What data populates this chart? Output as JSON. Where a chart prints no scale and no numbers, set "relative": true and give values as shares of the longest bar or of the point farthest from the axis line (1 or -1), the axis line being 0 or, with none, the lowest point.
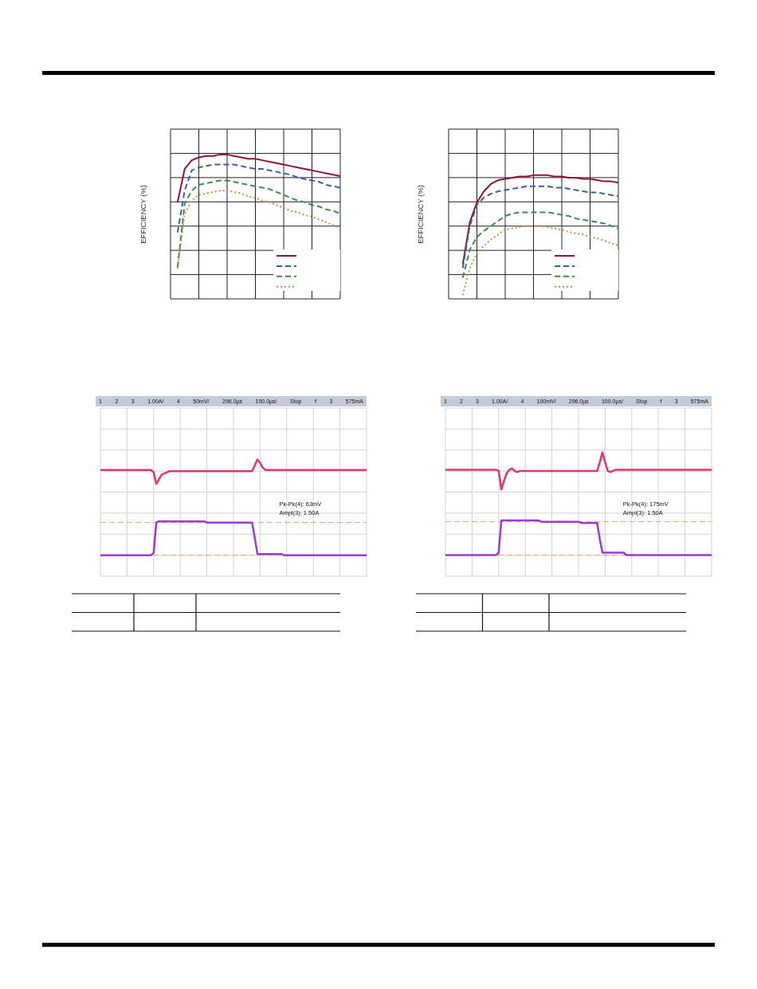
{
  "chart_data": [
    {
      "type": "line",
      "ylabel": "EFFICIENCY (%)",
      "relative": true,
      "tick_labels": false,
      "grid": true,
      "categories": [
        null,
        null,
        null,
        null,
        null,
        null,
        null,
        null,
        null,
        null,
        null,
        null,
        null,
        null,
        null,
        null,
        null,
        null,
        null,
        null,
        null,
        null,
        null,
        null,
        null
      ],
      "series": [
        {
          "color": "#8e1538",
          "line_style": "solid",
          "values": [
            null,
            0.67,
            0.9,
            0.96,
            0.98,
            0.99,
            0.99,
            1,
            1,
            0.99,
            0.98,
            0.97,
            0.97,
            0.96,
            0.95,
            0.94,
            0.93,
            0.92,
            0.91,
            0.9,
            0.89,
            0.88,
            0.87,
            0.86,
            0.85
          ]
        },
        {
          "color": "#3c5ea6",
          "line_style": "dashed",
          "values": [
            null,
            0.46,
            0.75,
            0.89,
            0.91,
            0.92,
            0.93,
            0.93,
            0.93,
            0.93,
            0.92,
            0.91,
            0.9,
            0.9,
            0.89,
            0.88,
            0.87,
            0.86,
            0.84,
            0.83,
            0.82,
            0.81,
            0.79,
            0.78,
            0.77
          ]
        },
        {
          "color": "#3d8b52",
          "line_style": "dashed",
          "values": [
            null,
            0.22,
            0.66,
            0.75,
            0.79,
            0.8,
            0.81,
            0.82,
            0.82,
            0.81,
            0.8,
            0.79,
            0.78,
            0.77,
            0.76,
            0.74,
            0.72,
            0.7,
            0.68,
            0.67,
            0.65,
            0.64,
            0.62,
            0.61,
            0.59
          ]
        },
        {
          "color": "#d4884c",
          "line_style": "dotted",
          "values": [
            null,
            0.21,
            0.59,
            0.68,
            0.72,
            0.73,
            0.74,
            0.75,
            0.75,
            0.74,
            0.73,
            0.71,
            0.7,
            0.68,
            0.67,
            0.65,
            0.63,
            0.61,
            0.6,
            0.58,
            0.57,
            0.55,
            0.53,
            0.51,
            0.49
          ]
        }
      ]
    },
    {
      "type": "line",
      "ylabel": "EFFICIENCY (%)",
      "relative": true,
      "tick_labels": false,
      "grid": true,
      "categories": [
        null,
        null,
        null,
        null,
        null,
        null,
        null,
        null,
        null,
        null,
        null,
        null,
        null,
        null,
        null,
        null,
        null,
        null,
        null,
        null,
        null,
        null,
        null,
        null,
        null
      ],
      "series": [
        {
          "color": "#8e1538",
          "line_style": "solid",
          "values": [
            null,
            null,
            0.28,
            0.62,
            0.78,
            0.87,
            0.93,
            0.96,
            0.97,
            0.98,
            0.99,
            0.99,
            1,
            1,
            1,
            0.99,
            0.99,
            0.98,
            0.98,
            0.97,
            0.97,
            0.96,
            0.95,
            0.95,
            0.94
          ]
        },
        {
          "color": "#3c5ea6",
          "line_style": "dashed",
          "values": [
            null,
            null,
            0.25,
            0.59,
            0.76,
            0.82,
            0.85,
            0.87,
            0.88,
            0.89,
            0.9,
            0.91,
            0.91,
            0.91,
            0.91,
            0.9,
            0.9,
            0.89,
            0.88,
            0.87,
            0.86,
            0.86,
            0.85,
            0.84,
            0.83
          ]
        },
        {
          "color": "#3d8b52",
          "line_style": "dashed",
          "values": [
            null,
            null,
            0.17,
            0.4,
            0.5,
            0.55,
            0.59,
            0.63,
            0.67,
            0.69,
            0.7,
            0.7,
            0.7,
            0.7,
            0.7,
            0.69,
            0.68,
            0.67,
            0.65,
            0.64,
            0.63,
            0.62,
            0.61,
            0.59,
            0.57
          ]
        },
        {
          "color": "#d4884c",
          "line_style": "dotted",
          "values": [
            null,
            null,
            0.03,
            0.25,
            0.37,
            0.43,
            0.48,
            0.52,
            0.56,
            0.57,
            0.58,
            0.59,
            0.59,
            0.59,
            0.58,
            0.57,
            0.56,
            0.54,
            0.53,
            0.52,
            0.5,
            0.49,
            0.47,
            0.45,
            0.43
          ]
        }
      ]
    },
    {
      "type": "line",
      "relative": true,
      "tick_labels": false,
      "grid": true,
      "categories": [
        null,
        null,
        null,
        null,
        null,
        null,
        null,
        null,
        null,
        null,
        null,
        null,
        null,
        null,
        null,
        null,
        null,
        null,
        null,
        null,
        null,
        null,
        null,
        null,
        null,
        null,
        null,
        null,
        null,
        null,
        null,
        null,
        null,
        null,
        null,
        null,
        null,
        null,
        null,
        null,
        null,
        null,
        null,
        null,
        null,
        null,
        null,
        null,
        null,
        null,
        null,
        null,
        null,
        null,
        null,
        null,
        null,
        null,
        null,
        null,
        null,
        null,
        null,
        null,
        null,
        null,
        null,
        null,
        null,
        null,
        null,
        null,
        null,
        null,
        null,
        null,
        null,
        null,
        null,
        null,
        null,
        null,
        null,
        null,
        null,
        null,
        null,
        null,
        null,
        null,
        null,
        null,
        null,
        null,
        null,
        null,
        null,
        null,
        null,
        null,
        null
      ],
      "series": [
        {
          "color": "#e8336e",
          "values": [
            0.91,
            0.91,
            0.91,
            0.91,
            0.91,
            0.91,
            0.91,
            0.91,
            0.91,
            0.91,
            0.91,
            0.91,
            0.91,
            0.91,
            0.91,
            0.91,
            0.91,
            0.91,
            0.91,
            0.91,
            0.89,
            0.79,
            0.83,
            0.87,
            0.88,
            0.89,
            0.9,
            0.9,
            0.9,
            0.9,
            0.9,
            0.9,
            0.9,
            0.9,
            0.9,
            0.9,
            0.9,
            0.9,
            0.9,
            0.9,
            0.9,
            0.9,
            0.9,
            0.9,
            0.9,
            0.9,
            0.9,
            0.9,
            0.9,
            0.9,
            0.9,
            0.9,
            0.9,
            0.9,
            0.9,
            0.9,
            0.9,
            0.9,
            0.95,
            1,
            0.97,
            0.93,
            0.91,
            0.91,
            0.91,
            0.91,
            0.91,
            0.91,
            0.91,
            0.91,
            0.91,
            0.91,
            0.91,
            0.91,
            0.91,
            0.91,
            0.91,
            0.91,
            0.91,
            0.91,
            0.91,
            0.91,
            0.91,
            0.91,
            0.91,
            0.91,
            0.91,
            0.91,
            0.91,
            0.91,
            0.91,
            0.91,
            0.91,
            0.91,
            0.91,
            0.91,
            0.91,
            0.91,
            0.91,
            0.91,
            0.91
          ]
        },
        {
          "color": "#9b3ad8",
          "values": [
            0.18,
            0.18,
            0.18,
            0.18,
            0.18,
            0.18,
            0.18,
            0.18,
            0.18,
            0.18,
            0.18,
            0.18,
            0.18,
            0.18,
            0.18,
            0.18,
            0.18,
            0.18,
            0.18,
            0.18,
            0.2,
            0.46,
            0.47,
            0.47,
            0.47,
            0.47,
            0.47,
            0.47,
            0.47,
            0.47,
            0.47,
            0.47,
            0.47,
            0.47,
            0.47,
            0.47,
            0.47,
            0.47,
            0.47,
            0.47,
            0.46,
            0.46,
            0.46,
            0.46,
            0.46,
            0.46,
            0.46,
            0.46,
            0.46,
            0.46,
            0.46,
            0.46,
            0.46,
            0.46,
            0.46,
            0.46,
            0.46,
            0.46,
            0.33,
            0.19,
            0.19,
            0.19,
            0.19,
            0.19,
            0.19,
            0.19,
            0.19,
            0.19,
            0.19,
            0.18,
            0.18,
            0.18,
            0.18,
            0.18,
            0.18,
            0.18,
            0.18,
            0.18,
            0.18,
            0.18,
            0.18,
            0.18,
            0.18,
            0.18,
            0.18,
            0.18,
            0.18,
            0.18,
            0.18,
            0.18,
            0.18,
            0.18,
            0.18,
            0.18,
            0.18,
            0.18,
            0.18,
            0.18,
            0.18,
            0.18,
            0.18
          ]
        }
      ],
      "ref_lines": [
        {
          "axis": "y",
          "value": 0.46,
          "color": "#e6a46a",
          "line_style": "dashed"
        },
        {
          "axis": "y",
          "value": 0.18,
          "color": "#e6a46a",
          "line_style": "dashed"
        }
      ],
      "annotations": [
        "1",
        "2",
        "3",
        "1.00A/",
        "4",
        "50mV/",
        "296.0µs",
        "100.0µs/",
        "Stop",
        "f",
        "3",
        "575mA",
        "Pk-Pk(4): 63mV",
        "Ampl(3): 1.50A"
      ]
    },
    {
      "type": "line",
      "relative": true,
      "tick_labels": false,
      "grid": true,
      "categories": [
        null,
        null,
        null,
        null,
        null,
        null,
        null,
        null,
        null,
        null,
        null,
        null,
        null,
        null,
        null,
        null,
        null,
        null,
        null,
        null,
        null,
        null,
        null,
        null,
        null,
        null,
        null,
        null,
        null,
        null,
        null,
        null,
        null,
        null,
        null,
        null,
        null,
        null,
        null,
        null,
        null,
        null,
        null,
        null,
        null,
        null,
        null,
        null,
        null,
        null,
        null,
        null,
        null,
        null,
        null,
        null,
        null,
        null,
        null,
        null,
        null,
        null,
        null,
        null,
        null,
        null,
        null,
        null,
        null,
        null,
        null,
        null,
        null,
        null,
        null,
        null,
        null,
        null,
        null,
        null,
        null,
        null,
        null,
        null,
        null,
        null,
        null,
        null,
        null,
        null,
        null,
        null,
        null,
        null,
        null,
        null,
        null,
        null,
        null,
        null,
        null
      ],
      "series": [
        {
          "color": "#e8336e",
          "values": [
            0.86,
            0.86,
            0.86,
            0.86,
            0.86,
            0.86,
            0.86,
            0.86,
            0.86,
            0.86,
            0.86,
            0.86,
            0.86,
            0.86,
            0.86,
            0.86,
            0.86,
            0.86,
            0.86,
            0.86,
            0.85,
            0.7,
            0.77,
            0.83,
            0.86,
            0.87,
            0.85,
            0.84,
            0.85,
            0.85,
            0.85,
            0.85,
            0.85,
            0.85,
            0.85,
            0.85,
            0.85,
            0.85,
            0.85,
            0.85,
            0.85,
            0.85,
            0.85,
            0.85,
            0.85,
            0.85,
            0.85,
            0.85,
            0.85,
            0.85,
            0.85,
            0.85,
            0.85,
            0.85,
            0.85,
            0.85,
            0.85,
            0.85,
            0.92,
            1,
            0.92,
            0.85,
            0.84,
            0.85,
            0.86,
            0.86,
            0.86,
            0.86,
            0.86,
            0.86,
            0.86,
            0.86,
            0.86,
            0.86,
            0.86,
            0.86,
            0.86,
            0.86,
            0.86,
            0.86,
            0.86,
            0.86,
            0.86,
            0.86,
            0.86,
            0.86,
            0.86,
            0.86,
            0.86,
            0.86,
            0.86,
            0.86,
            0.86,
            0.86,
            0.86,
            0.86,
            0.86,
            0.86,
            0.86,
            0.86,
            0.86
          ]
        },
        {
          "color": "#9b3ad8",
          "values": [
            0.17,
            0.17,
            0.17,
            0.17,
            0.17,
            0.17,
            0.17,
            0.17,
            0.17,
            0.17,
            0.17,
            0.17,
            0.17,
            0.17,
            0.17,
            0.17,
            0.17,
            0.17,
            0.17,
            0.17,
            0.19,
            0.45,
            0.45,
            0.45,
            0.45,
            0.45,
            0.45,
            0.45,
            0.45,
            0.45,
            0.45,
            0.45,
            0.45,
            0.45,
            0.45,
            0.45,
            0.44,
            0.44,
            0.44,
            0.44,
            0.44,
            0.44,
            0.44,
            0.44,
            0.44,
            0.44,
            0.44,
            0.44,
            0.44,
            0.44,
            0.44,
            0.43,
            0.43,
            0.43,
            0.43,
            0.43,
            0.43,
            0.43,
            0.3,
            0.19,
            0.19,
            0.19,
            0.19,
            0.19,
            0.19,
            0.19,
            0.19,
            0.19,
            0.17,
            0.17,
            0.17,
            0.17,
            0.17,
            0.17,
            0.17,
            0.17,
            0.17,
            0.17,
            0.17,
            0.17,
            0.17,
            0.17,
            0.17,
            0.17,
            0.17,
            0.17,
            0.17,
            0.17,
            0.17,
            0.17,
            0.17,
            0.17,
            0.17,
            0.17,
            0.17,
            0.17,
            0.17,
            0.17,
            0.17,
            0.17,
            0.17
          ]
        }
      ],
      "ref_lines": [
        {
          "axis": "y",
          "value": 0.44,
          "color": "#e6a46a",
          "line_style": "dashed"
        },
        {
          "axis": "y",
          "value": 0.17,
          "color": "#e6a46a",
          "line_style": "dashed"
        }
      ],
      "annotations": [
        "1",
        "2",
        "3",
        "1.00A/",
        "4",
        "100mV/",
        "296.0µs",
        "100.0µs/",
        "Stop",
        "f",
        "3",
        "575mA",
        "Pk-Pk(4): 175mV",
        "Ampl(3): 1.50A"
      ]
    }
  ]
}
